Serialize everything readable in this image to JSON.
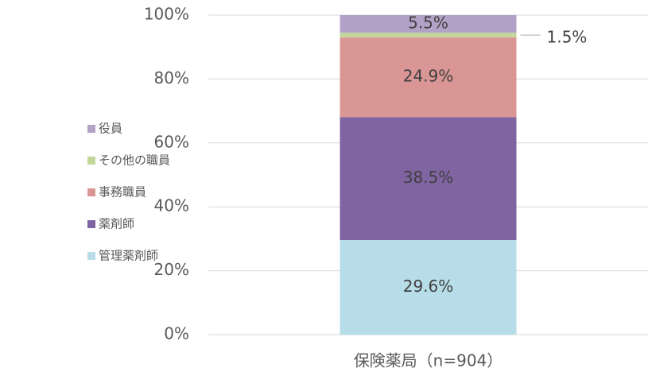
{
  "chart_data": {
    "type": "stacked_bar",
    "categories": [
      "保険薬局（n=904）"
    ],
    "series": [
      {
        "name": "管理薬剤師",
        "color": "#b7dde8",
        "values": [
          29.6
        ],
        "value_labels": [
          "29.6%"
        ]
      },
      {
        "name": "薬剤師",
        "color": "#8064a2",
        "values": [
          38.5
        ],
        "value_labels": [
          "38.5%"
        ]
      },
      {
        "name": "事務職員",
        "color": "#d99694",
        "values": [
          24.9
        ],
        "value_labels": [
          "24.9%"
        ]
      },
      {
        "name": "その他の職員",
        "color": "#c3d69b",
        "values": [
          1.5
        ],
        "value_labels": [
          "1.5%"
        ]
      },
      {
        "name": "役員",
        "color": "#b3a2c7",
        "values": [
          5.5
        ],
        "value_labels": [
          "5.5%"
        ]
      }
    ],
    "ylim": [
      0,
      100
    ],
    "yticks": [
      {
        "value": 0,
        "label": "0%"
      },
      {
        "value": 20,
        "label": "20%"
      },
      {
        "value": 40,
        "label": "40%"
      },
      {
        "value": 60,
        "label": "60%"
      },
      {
        "value": 80,
        "label": "80%"
      },
      {
        "value": 100,
        "label": "100%"
      }
    ],
    "grid": true,
    "legend": "left"
  }
}
